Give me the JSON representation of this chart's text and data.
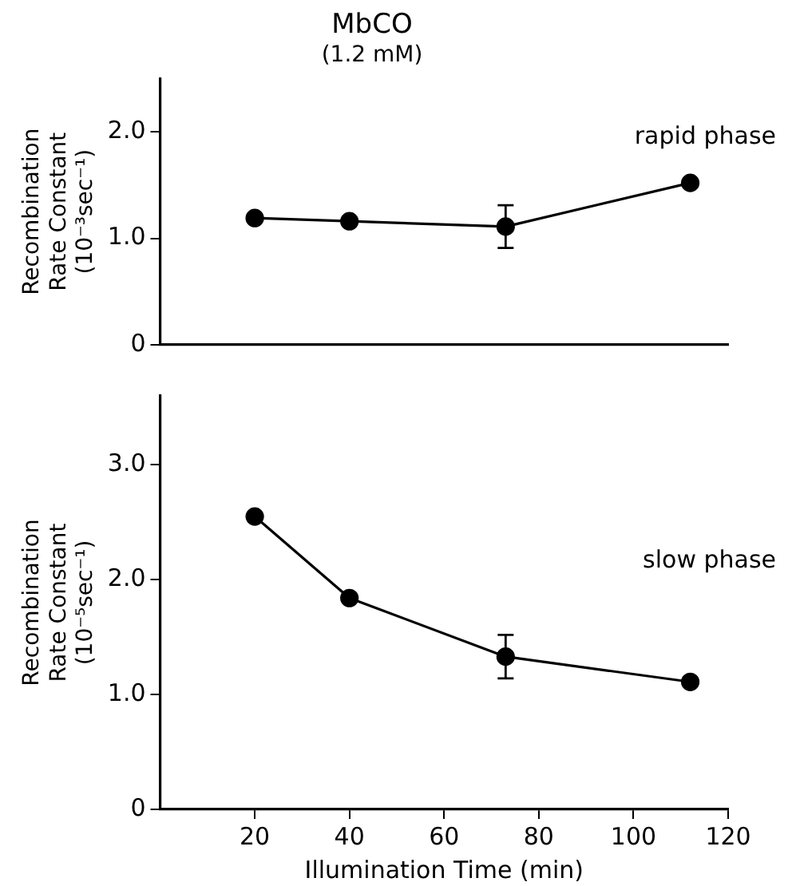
{
  "chart_data": [
    {
      "type": "line",
      "title": "MbCO",
      "subtitle": "(1.2 mM)",
      "ylabel": "Recombination Rate Constant (10⁻³sec⁻¹)",
      "x": [
        20,
        40,
        73,
        112
      ],
      "series": [
        {
          "color": "#000000",
          "values": [
            1.19,
            1.16,
            1.11,
            1.52
          ],
          "errors": [
            null,
            null,
            0.2,
            null
          ]
        }
      ],
      "xlim": [
        0,
        120
      ],
      "ylim": [
        0,
        2.5
      ],
      "yticks": [
        0,
        {
          "value": 1,
          "label": "1.0"
        },
        {
          "value": 2,
          "label": "2.0"
        }
      ],
      "tick_labels": "y",
      "grid": false,
      "legend": false,
      "marker": "circle",
      "line_style": "solid",
      "annotations": [
        "rapid phase"
      ]
    },
    {
      "type": "line",
      "xlabel": "Illumination Time (min)",
      "ylabel": "Recombination Rate Constant (10⁻⁵sec⁻¹)",
      "x": [
        20,
        40,
        73,
        112
      ],
      "series": [
        {
          "color": "#000000",
          "values": [
            2.55,
            1.84,
            1.33,
            1.11
          ],
          "errors": [
            null,
            null,
            0.19,
            null
          ]
        }
      ],
      "xlim": [
        0,
        120
      ],
      "xticks": [
        20,
        40,
        60,
        80,
        100,
        120
      ],
      "ylim": [
        0,
        3.6
      ],
      "yticks": [
        0,
        {
          "value": 1,
          "label": "1.0"
        },
        {
          "value": 2,
          "label": "2.0"
        },
        {
          "value": 3,
          "label": "3.0"
        }
      ],
      "grid": false,
      "legend": false,
      "marker": "circle",
      "line_style": "solid",
      "annotations": [
        "slow phase"
      ]
    }
  ]
}
